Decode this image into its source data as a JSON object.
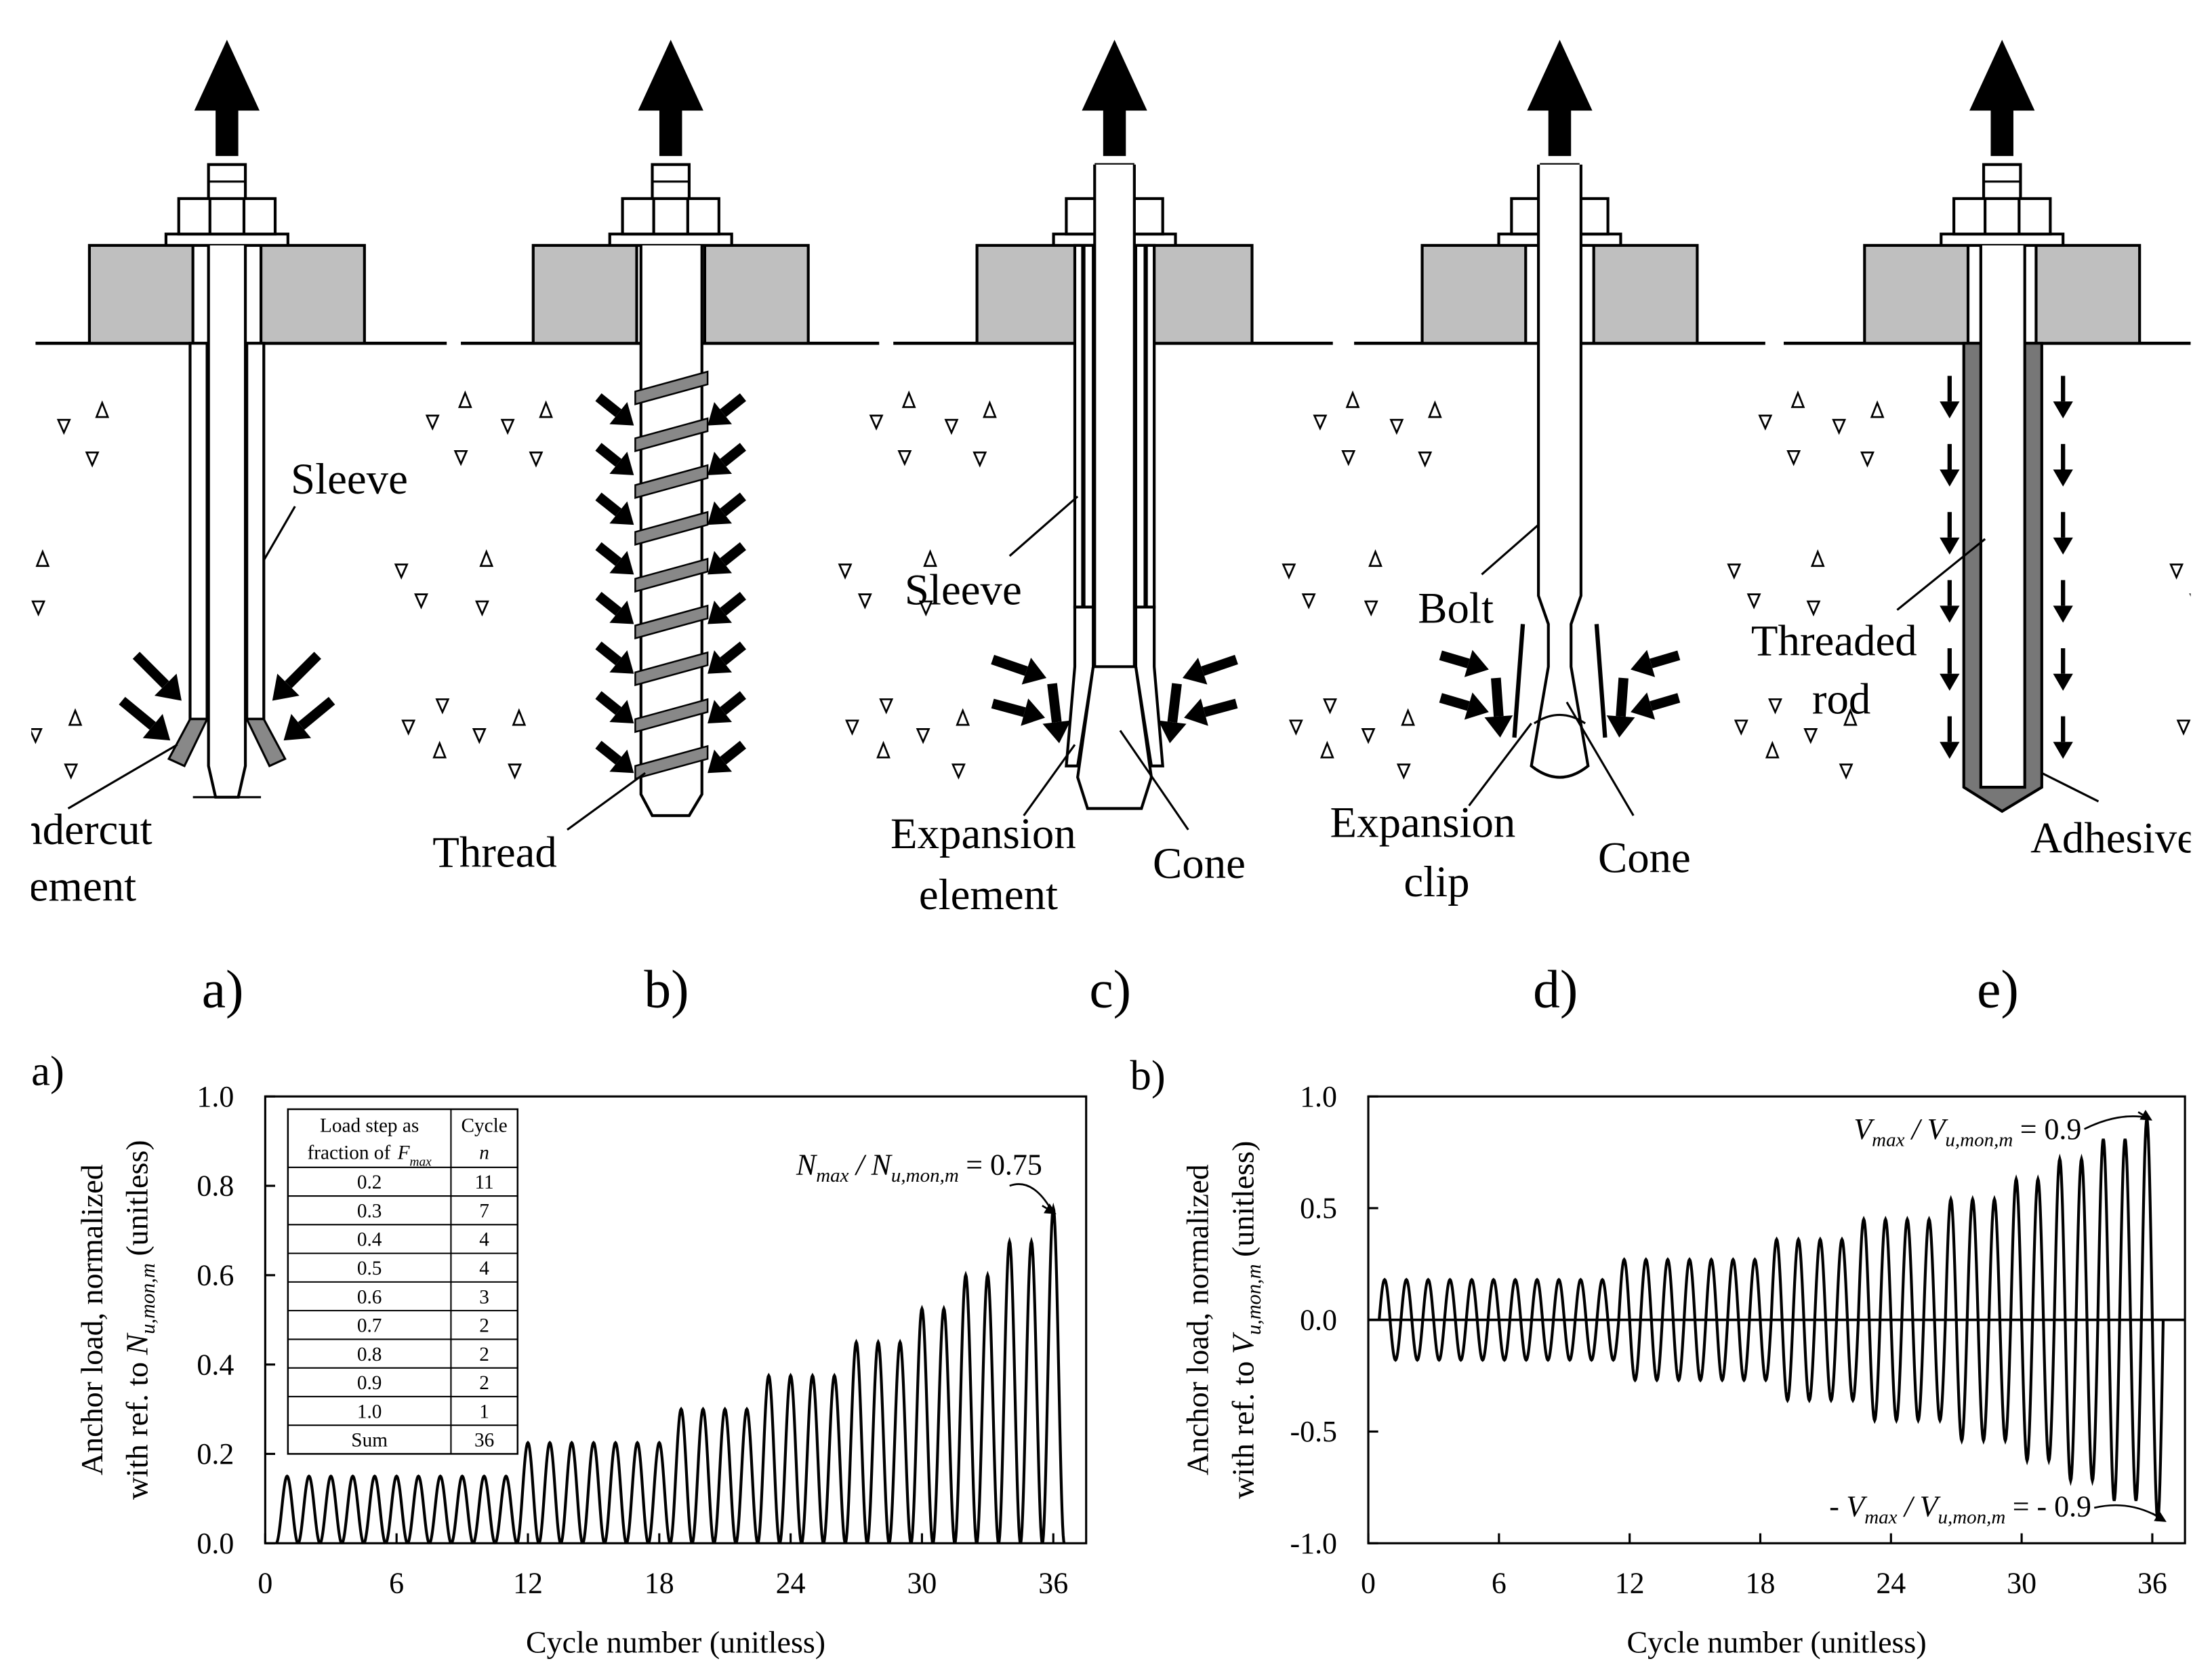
{
  "diagrams": [
    {
      "panel": "a)",
      "labels": [
        "Sleeve",
        "Undercut",
        "element"
      ]
    },
    {
      "panel": "b)",
      "labels": [
        "Thread"
      ]
    },
    {
      "panel": "c)",
      "labels": [
        "Sleeve",
        "Expansion",
        "element",
        "Cone"
      ]
    },
    {
      "panel": "d)",
      "labels": [
        "Bolt",
        "Expansion",
        "clip",
        "Cone"
      ]
    },
    {
      "panel": "e)",
      "labels": [
        "Threaded",
        "rod",
        "Adhesive"
      ]
    }
  ],
  "chart_data": [
    {
      "type": "line",
      "panel": "a)",
      "ylabel": [
        [
          [
            "Anchor load, normalized"
          ]
        ],
        [
          [
            "with ref. to"
          ],
          [
            "N",
            "u,mon,m"
          ],
          [
            "(unitless)"
          ]
        ]
      ],
      "xlabel": "Cycle number (unitless)",
      "x": [
        1,
        2,
        3,
        4,
        5,
        6,
        7,
        8,
        9,
        10,
        11,
        12,
        13,
        14,
        15,
        16,
        17,
        18,
        19,
        20,
        21,
        22,
        23,
        24,
        25,
        26,
        27,
        28,
        29,
        30,
        31,
        32,
        33,
        34,
        35,
        36
      ],
      "values": [
        0.15,
        0.15,
        0.15,
        0.15,
        0.15,
        0.15,
        0.15,
        0.15,
        0.15,
        0.15,
        0.15,
        0.225,
        0.225,
        0.225,
        0.225,
        0.225,
        0.225,
        0.225,
        0.3,
        0.3,
        0.3,
        0.3,
        0.375,
        0.375,
        0.375,
        0.375,
        0.45,
        0.45,
        0.45,
        0.525,
        0.525,
        0.6,
        0.6,
        0.675,
        0.675,
        0.75
      ],
      "color": "#000000",
      "xlim": [
        0,
        37.5
      ],
      "ylim": [
        0,
        1
      ],
      "xticks": [
        0,
        6,
        12,
        18,
        24,
        30,
        36
      ],
      "yticks": [
        {
          "value": 0,
          "label": "0.0"
        },
        0.2,
        0.4,
        0.6,
        0.8,
        {
          "value": 1,
          "label": "1.0"
        }
      ],
      "annotations": [
        [
          [
            "N",
            "max"
          ],
          [
            "/"
          ],
          [
            "N",
            "u,mon,m"
          ],
          [
            "= 0.75"
          ]
        ]
      ],
      "table": {
        "header": [
          [
            [
              "Load step as"
            ]
          ],
          [
            [
              "fraction of"
            ],
            [
              "F",
              "max"
            ]
          ],
          [
            [
              "Cycle"
            ]
          ],
          [
            [
              "n"
            ]
          ]
        ],
        "rows": [
          [
            "0.2",
            "11"
          ],
          [
            "0.3",
            "7"
          ],
          [
            "0.4",
            "4"
          ],
          [
            "0.5",
            "4"
          ],
          [
            "0.6",
            "3"
          ],
          [
            "0.7",
            "2"
          ],
          [
            "0.8",
            "2"
          ],
          [
            "0.9",
            "2"
          ],
          [
            "1.0",
            "1"
          ],
          [
            "Sum",
            "36"
          ]
        ]
      }
    },
    {
      "type": "line",
      "panel": "b)",
      "ylabel": [
        [
          [
            "Anchor load,  normalized"
          ]
        ],
        [
          [
            "with ref. to"
          ],
          [
            "V",
            "u,mon,m"
          ],
          [
            "(unitless)"
          ]
        ]
      ],
      "xlabel": "Cycle number (unitless)",
      "x": [
        1,
        2,
        3,
        4,
        5,
        6,
        7,
        8,
        9,
        10,
        11,
        12,
        13,
        14,
        15,
        16,
        17,
        18,
        19,
        20,
        21,
        22,
        23,
        24,
        25,
        26,
        27,
        28,
        29,
        30,
        31,
        32,
        33,
        34,
        35,
        36
      ],
      "values": [
        0.18,
        0.18,
        0.18,
        0.18,
        0.18,
        0.18,
        0.18,
        0.18,
        0.18,
        0.18,
        0.18,
        0.27,
        0.27,
        0.27,
        0.27,
        0.27,
        0.27,
        0.27,
        0.36,
        0.36,
        0.36,
        0.36,
        0.45,
        0.45,
        0.45,
        0.45,
        0.54,
        0.54,
        0.54,
        0.63,
        0.63,
        0.72,
        0.72,
        0.81,
        0.81,
        0.9
      ],
      "color": "#000000",
      "xlim": [
        0,
        37.5
      ],
      "ylim": [
        -1,
        1
      ],
      "xticks": [
        0,
        6,
        12,
        18,
        24,
        30,
        36
      ],
      "yticks": [
        {
          "value": -1,
          "label": "-1.0"
        },
        -0.5,
        {
          "value": 0,
          "label": "0.0"
        },
        0.5,
        {
          "value": 1,
          "label": "1.0"
        }
      ],
      "annotations": [
        [
          [
            "V",
            "max"
          ],
          [
            "/"
          ],
          [
            "V",
            "u,mon,m"
          ],
          [
            "= 0.9"
          ]
        ],
        [
          [
            "-"
          ],
          [
            "V",
            "max"
          ],
          [
            "/"
          ],
          [
            "V",
            "u,mon,m"
          ],
          [
            "= - 0.9"
          ]
        ]
      ]
    }
  ]
}
